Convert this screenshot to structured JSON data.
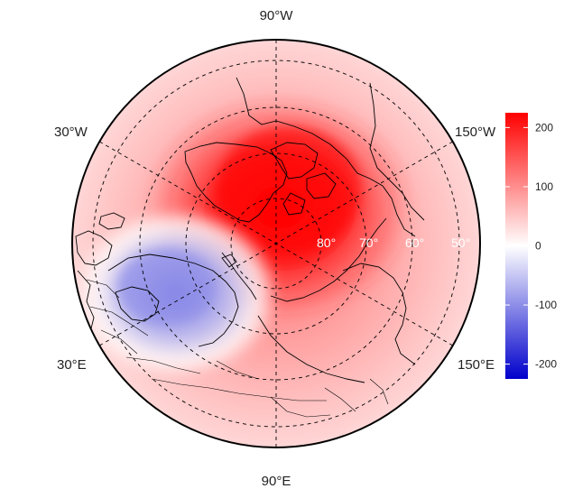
{
  "map": {
    "projection": "north-polar-stereographic",
    "longitude_labels": {
      "top": "90°W",
      "bottom": "90°E",
      "upper_left": "30°W",
      "lower_left": "30°E",
      "upper_right": "150°W",
      "lower_right": "150°E"
    },
    "latitude_labels": [
      "80°",
      "70°",
      "60°",
      "50°"
    ],
    "gridlines": "dashed",
    "field_pattern": "positive maximum over the pole and Canadian Arctic (~+220), broad positive ring at lower latitudes, negative minimum over Scandinavia / Barents region (~-120)"
  },
  "colorbar": {
    "ticks": [
      "200",
      "100",
      "0",
      "-100",
      "-200"
    ],
    "tick_values": [
      200,
      100,
      0,
      -100,
      -200
    ],
    "min": -225,
    "max": 225,
    "colors": {
      "high": "#ff0000",
      "mid": "#ffffff",
      "low": "#0000cc"
    }
  }
}
